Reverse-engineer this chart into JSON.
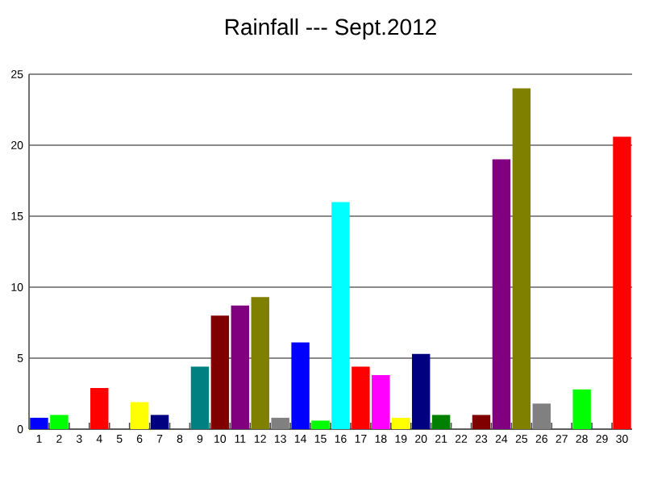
{
  "chart_data": {
    "type": "bar",
    "title": "Rainfall --- Sept.2012",
    "categories": [
      "1",
      "2",
      "3",
      "4",
      "5",
      "6",
      "7",
      "8",
      "9",
      "10",
      "11",
      "12",
      "13",
      "14",
      "15",
      "16",
      "17",
      "18",
      "19",
      "20",
      "21",
      "22",
      "23",
      "24",
      "25",
      "26",
      "27",
      "28",
      "29",
      "30"
    ],
    "values": [
      0.8,
      1.0,
      0,
      2.9,
      0,
      1.9,
      1.0,
      0,
      4.4,
      8.0,
      8.7,
      9.3,
      0.8,
      6.1,
      0.6,
      16.0,
      4.4,
      3.8,
      0.8,
      5.3,
      1.0,
      0,
      1.0,
      19.0,
      24.0,
      1.8,
      0,
      2.8,
      0,
      20.6
    ],
    "colors": [
      "#0000ff",
      "#00ff00",
      "#00ffff",
      "#ff0000",
      "#ff00ff",
      "#ffff00",
      "#000080",
      "#008000",
      "#008080",
      "#800000",
      "#800080",
      "#808000",
      "#808080",
      "#0000ff",
      "#00ff00",
      "#00ffff",
      "#ff0000",
      "#ff00ff",
      "#ffff00",
      "#000080",
      "#008000",
      "#008080",
      "#800000",
      "#800080",
      "#808000",
      "#808080",
      "#0000ff",
      "#00ff00",
      "#00ffff",
      "#ff0000"
    ],
    "ylim": [
      0,
      25
    ],
    "yticks": [
      0,
      5,
      10,
      15,
      20,
      25
    ],
    "grid": "y"
  }
}
